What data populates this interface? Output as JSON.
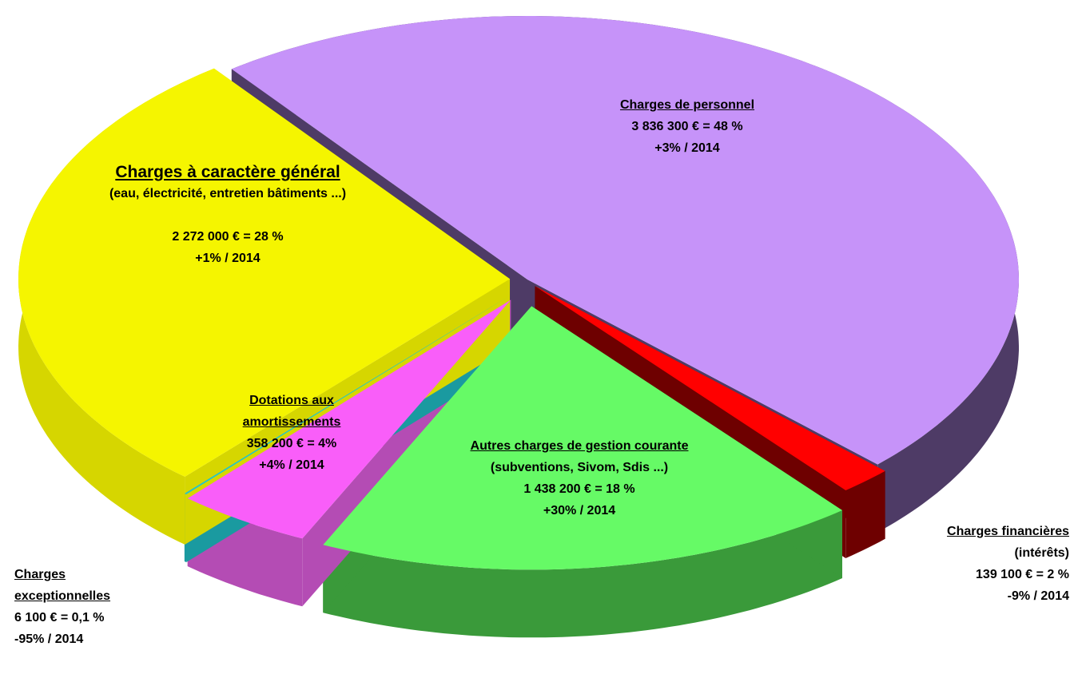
{
  "chart_data": {
    "type": "pie",
    "categories": [
      "Charges de personnel",
      "Charges financières",
      "Autres charges de gestion courante",
      "Dotations aux amortissements",
      "Charges exceptionnelles",
      "Charges à caractère général"
    ],
    "notes": [
      null,
      "(intérêts)",
      "(subventions, Sivom, Sdis ...)",
      null,
      null,
      "(eau, électricité, entretien bâtiments ...)"
    ],
    "values": [
      3836300,
      139100,
      1438200,
      358200,
      6100,
      2272000
    ],
    "value_labels": [
      "3 836 300 € = 48 %",
      "139 100 € = 2 %",
      "1 438 200 € = 18 %",
      "358 200 € = 4%",
      "6 100 € = 0,1 %",
      "2 272 000 € = 28 %"
    ],
    "changes": [
      "+3% / 2014",
      "-9% / 2014",
      "+30% / 2014",
      "+4% / 2014",
      "-95% / 2014",
      "+1% / 2014"
    ],
    "colors": [
      "#c693f9",
      "#ff0000",
      "#66fa66",
      "#f95ef9",
      "#22c4cc",
      "#f5f500"
    ],
    "side_colors": [
      "#4e3b66",
      "#6e0000",
      "#3a9a3a",
      "#b44cb4",
      "#1a9aa0",
      "#d6d600"
    ]
  }
}
